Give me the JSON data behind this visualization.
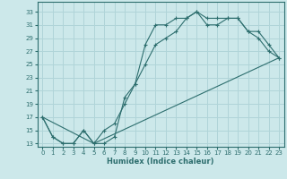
{
  "xlabel": "Humidex (Indice chaleur)",
  "ylabel": "",
  "bg_color": "#cce8ea",
  "grid_color": "#b0d4d8",
  "line_color": "#2d6e6e",
  "xlim": [
    -0.5,
    23.5
  ],
  "ylim": [
    12.5,
    34.5
  ],
  "yticks": [
    13,
    15,
    17,
    19,
    21,
    23,
    25,
    27,
    29,
    31,
    33
  ],
  "xticks": [
    0,
    1,
    2,
    3,
    4,
    5,
    6,
    7,
    8,
    9,
    10,
    11,
    12,
    13,
    14,
    15,
    16,
    17,
    18,
    19,
    20,
    21,
    22,
    23
  ],
  "line1_x": [
    0,
    1,
    2,
    3,
    4,
    5,
    6,
    7,
    8,
    9,
    10,
    11,
    12,
    13,
    14,
    15,
    16,
    17,
    18,
    19,
    20,
    21,
    22,
    23
  ],
  "line1_y": [
    17,
    14,
    13,
    13,
    15,
    13,
    13,
    14,
    20,
    22,
    28,
    31,
    31,
    32,
    32,
    33,
    32,
    32,
    32,
    32,
    30,
    30,
    28,
    26
  ],
  "line2_x": [
    0,
    1,
    2,
    3,
    4,
    5,
    6,
    7,
    8,
    9,
    10,
    11,
    12,
    13,
    14,
    15,
    16,
    17,
    18,
    19,
    20,
    21,
    22,
    23
  ],
  "line2_y": [
    17,
    14,
    13,
    13,
    15,
    13,
    15,
    16,
    19,
    22,
    25,
    28,
    29,
    30,
    32,
    33,
    31,
    31,
    32,
    32,
    30,
    29,
    27,
    26
  ],
  "line3_x": [
    0,
    5,
    23
  ],
  "line3_y": [
    17,
    13,
    26
  ],
  "marker": "+"
}
